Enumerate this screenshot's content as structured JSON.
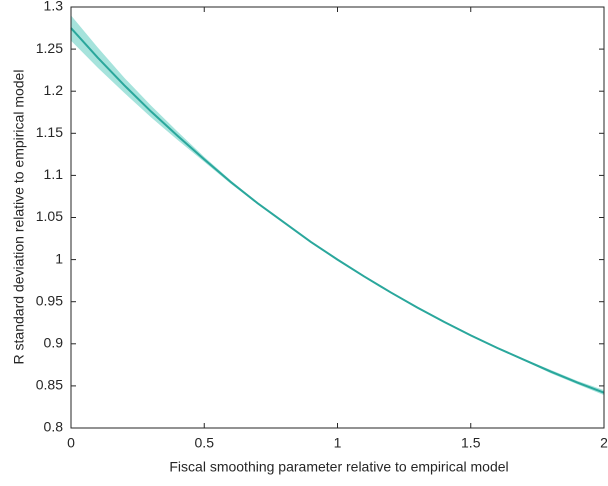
{
  "chart_data": {
    "type": "band_line",
    "xlabel": "Fiscal smoothing parameter relative to empirical model",
    "ylabel": "R standard deviation relative to empirical model",
    "x": [
      0,
      0.1,
      0.2,
      0.3,
      0.4,
      0.5,
      0.6,
      0.7,
      0.8,
      0.9,
      1.0,
      1.1,
      1.2,
      1.3,
      1.4,
      1.5,
      1.6,
      1.7,
      1.8,
      1.9,
      2.0
    ],
    "values": [
      1.275,
      1.24,
      1.207,
      1.176,
      1.147,
      1.119,
      1.092,
      1.067,
      1.044,
      1.021,
      1.0,
      0.98,
      0.961,
      0.943,
      0.926,
      0.91,
      0.895,
      0.881,
      0.867,
      0.854,
      0.842
    ],
    "lower": [
      1.26,
      1.228,
      1.198,
      1.169,
      1.142,
      1.116,
      1.09,
      1.066,
      1.043,
      1.02,
      0.999,
      0.979,
      0.96,
      0.942,
      0.925,
      0.909,
      0.894,
      0.88,
      0.865,
      0.852,
      0.839
    ],
    "upper": [
      1.29,
      1.252,
      1.216,
      1.183,
      1.152,
      1.122,
      1.094,
      1.068,
      1.045,
      1.022,
      1.001,
      0.981,
      0.962,
      0.944,
      0.927,
      0.911,
      0.896,
      0.882,
      0.869,
      0.856,
      0.845
    ],
    "color": "#2aa79c",
    "band_color": "#a6e3dc",
    "xlim": [
      0,
      2
    ],
    "xticks": [
      0,
      0.5,
      1,
      1.5,
      2
    ],
    "ylim": [
      0.8,
      1.3
    ],
    "yticks": [
      0.8,
      0.85,
      0.9,
      0.95,
      1,
      1.05,
      1.1,
      1.15,
      1.2,
      1.25,
      1.3
    ]
  }
}
